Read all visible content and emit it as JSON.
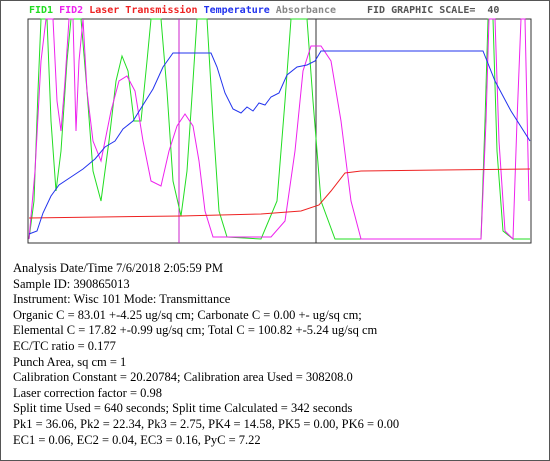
{
  "legend": [
    {
      "label": "FID1",
      "color": "#22dd22"
    },
    {
      "label": "FID2",
      "color": "#ee22ee"
    },
    {
      "label": "Laser Transmission",
      "color": "#ee2222"
    },
    {
      "label": "Temperature",
      "color": "#2233ee"
    },
    {
      "label": "Absorbance",
      "color": "#888888"
    }
  ],
  "scale_label": "FID GRAPHIC SCALE=  40",
  "report": [
    "Analysis Date/Time 7/6/2018 2:05:59 PM",
    "Sample ID: 390865013",
    "Instrument: Wisc 101 Mode: Transmittance",
    "Organic C = 83.01 +-4.25 ug/sq cm; Carbonate C = 0.00 +- ug/sq cm;",
    "Elemental C = 17.82 +-0.99 ug/sq cm; Total C = 100.82 +-5.24 ug/sq cm",
    "EC/TC ratio = 0.177",
    "Punch Area, sq cm = 1",
    "Calibration Constant = 20.20784; Calibration area Used = 308208.0",
    "Laser correction factor = 0.98",
    "Split time Used = 640 seconds; Split time Calculated = 342 seconds",
    "Pk1 = 36.06, Pk2 = 22.34, Pk3 = 2.75, PK4 = 14.58, PK5 = 0.00, PK6 = 0.00",
    "EC1 = 0.06, EC2 = 0.04, EC3 = 0.16, PyC = 7.22"
  ]
}
